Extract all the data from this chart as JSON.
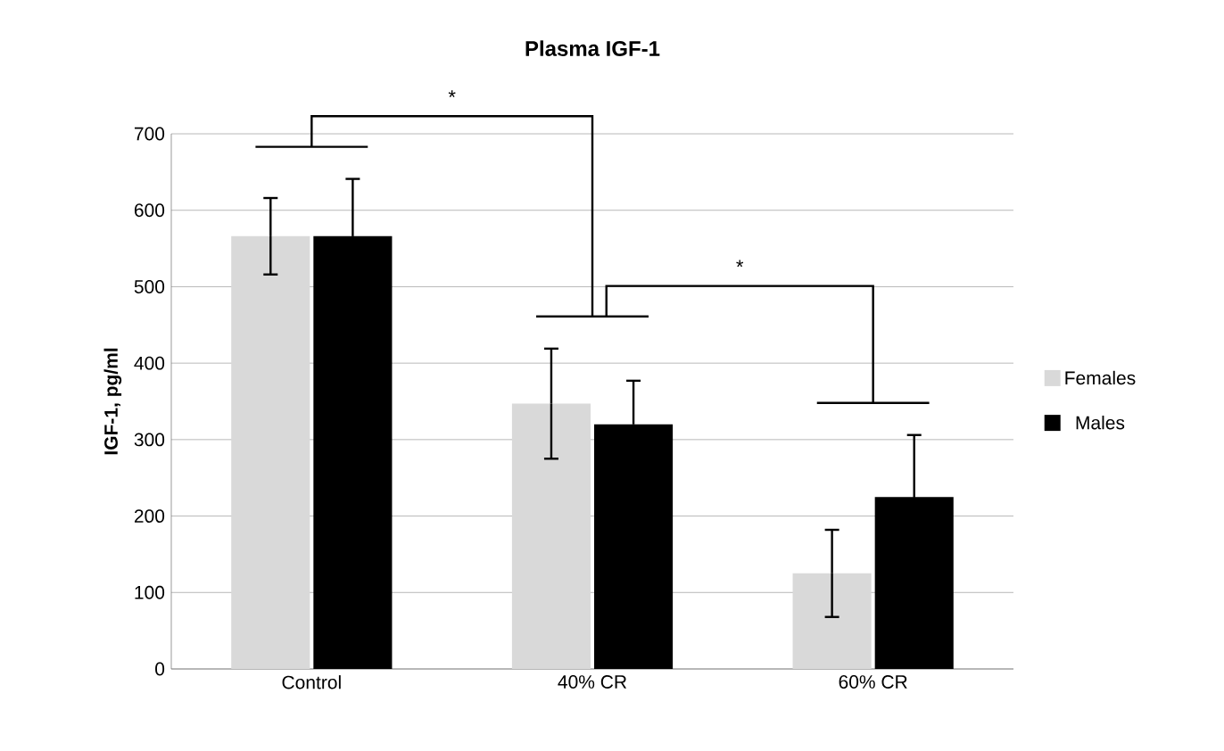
{
  "chart_data": {
    "type": "bar",
    "title": "Plasma IGF-1",
    "ylabel": "IGF-1, pg/ml",
    "categories": [
      "Control",
      "40% CR",
      "60% CR"
    ],
    "series": [
      {
        "name": "Females",
        "color": "#d9d9d9",
        "values": [
          566,
          347,
          125
        ],
        "errors": [
          50,
          72,
          57
        ]
      },
      {
        "name": "Males",
        "color": "#000000",
        "values": [
          566,
          320,
          225
        ],
        "errors": [
          75,
          57,
          81
        ]
      }
    ],
    "ylim": [
      0,
      700
    ],
    "yticks": [
      0,
      100,
      200,
      300,
      400,
      500,
      600,
      700
    ],
    "grid": "y",
    "legend": "right",
    "annotations": [
      "*",
      "*"
    ]
  }
}
